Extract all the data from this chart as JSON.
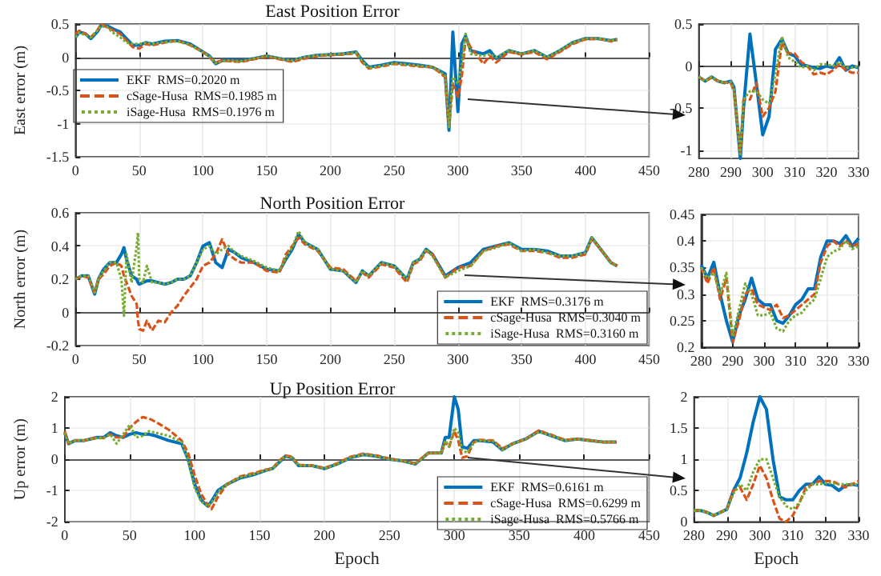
{
  "chart_data": [
    {
      "type": "line",
      "title": "East Position Error",
      "ylabel": "East error (m)",
      "xlim": [
        0,
        450
      ],
      "xticks": [
        0,
        50,
        100,
        150,
        200,
        250,
        300,
        350,
        400,
        450
      ],
      "ylim": [
        -1.5,
        0.5
      ],
      "yticks": [
        -1.5,
        -1,
        -0.5,
        0,
        0.5
      ],
      "grid": true,
      "legend": "left",
      "marker": "none",
      "x": [
        0,
        3,
        8,
        12,
        17,
        20,
        25,
        30,
        35,
        40,
        45,
        50,
        55,
        60,
        70,
        80,
        90,
        100,
        105,
        110,
        115,
        120,
        130,
        140,
        150,
        160,
        170,
        180,
        190,
        200,
        210,
        220,
        225,
        230,
        240,
        250,
        260,
        270,
        280,
        285,
        290,
        293,
        296,
        300,
        303,
        306,
        310,
        320,
        325,
        330,
        340,
        350,
        360,
        370,
        380,
        390,
        400,
        410,
        420,
        425
      ],
      "series": [
        {
          "name": "EKF  RMS=0.2020 m",
          "color": "#0072bd",
          "line_style": "solid",
          "values": [
            0.3,
            0.38,
            0.35,
            0.28,
            0.38,
            0.48,
            0.47,
            0.42,
            0.38,
            0.28,
            0.18,
            0.18,
            0.22,
            0.2,
            0.24,
            0.25,
            0.2,
            0.08,
            0.02,
            -0.1,
            -0.05,
            -0.04,
            -0.05,
            -0.02,
            0.02,
            -0.02,
            -0.05,
            0,
            0.03,
            0.04,
            0.05,
            0.08,
            -0.05,
            -0.15,
            -0.12,
            -0.08,
            -0.1,
            -0.12,
            -0.15,
            -0.2,
            -0.25,
            -1.1,
            0.38,
            -0.82,
            0.2,
            0.32,
            0.1,
            0.05,
            0.1,
            -0.02,
            0.1,
            0.05,
            0.1,
            0,
            0.1,
            0.22,
            0.28,
            0.28,
            0.25,
            0.27
          ]
        },
        {
          "name": "cSage-Husa  RMS=0.1985 m",
          "color": "#d95319",
          "line_style": "dashed",
          "values": [
            0.35,
            0.4,
            0.35,
            0.3,
            0.4,
            0.5,
            0.45,
            0.4,
            0.35,
            0.25,
            0.15,
            0.13,
            0.2,
            0.18,
            0.22,
            0.25,
            0.18,
            0.08,
            0,
            -0.08,
            -0.05,
            -0.06,
            -0.07,
            -0.03,
            0.01,
            -0.03,
            -0.07,
            -0.02,
            0.02,
            0.03,
            0.04,
            0.06,
            -0.08,
            -0.17,
            -0.14,
            -0.1,
            -0.12,
            -0.14,
            -0.15,
            -0.22,
            -0.3,
            -1.05,
            -0.4,
            -0.6,
            -0.3,
            0.28,
            0.15,
            -0.1,
            0.02,
            -0.08,
            0.08,
            0.04,
            0.08,
            -0.03,
            0.08,
            0.2,
            0.27,
            0.28,
            0.24,
            0.26
          ]
        },
        {
          "name": "iSage-Husa  RMS=0.1976 m",
          "color": "#77ac30",
          "line_style": "dotted",
          "values": [
            0.3,
            0.37,
            0.33,
            0.3,
            0.4,
            0.47,
            0.45,
            0.36,
            0.3,
            0.22,
            0.2,
            0.2,
            0.22,
            0.2,
            0.23,
            0.24,
            0.19,
            0.07,
            0.01,
            -0.09,
            -0.06,
            -0.05,
            -0.06,
            -0.02,
            0.02,
            -0.02,
            -0.05,
            0,
            0.03,
            0.04,
            0.05,
            0.07,
            -0.06,
            -0.16,
            -0.13,
            -0.09,
            -0.11,
            -0.13,
            -0.15,
            -0.2,
            -0.28,
            -1.05,
            -0.3,
            -0.4,
            -0.1,
            0.35,
            0.05,
            0.02,
            0.05,
            0,
            0.1,
            0.05,
            0.1,
            0,
            0.1,
            0.22,
            0.28,
            0.28,
            0.25,
            0.27
          ]
        }
      ]
    },
    {
      "type": "line",
      "xlim": [
        280,
        330
      ],
      "xticks": [
        280,
        290,
        300,
        310,
        320,
        330
      ],
      "ylim": [
        -1.1,
        0.5
      ],
      "yticks": [
        -1,
        -0.5,
        0,
        0.5
      ],
      "grid": true,
      "legend": false,
      "marker": "none",
      "x": [
        280,
        282,
        284,
        286,
        288,
        290,
        291,
        293,
        294,
        296,
        298,
        300,
        302,
        304,
        306,
        308,
        310,
        312,
        314,
        316,
        318,
        320,
        322,
        324,
        326,
        328,
        330
      ],
      "series": [
        {
          "color": "#0072bd",
          "line_style": "solid",
          "values": [
            -0.13,
            -0.18,
            -0.13,
            -0.18,
            -0.2,
            -0.18,
            -0.25,
            -1.1,
            -0.5,
            0.38,
            -0.2,
            -0.82,
            -0.6,
            0.2,
            0.32,
            0.15,
            0.12,
            0.02,
            0,
            -0.02,
            -0.03,
            0,
            -0.02,
            0.1,
            -0.05,
            0,
            -0.02
          ]
        },
        {
          "color": "#d95319",
          "line_style": "dashed",
          "values": [
            -0.13,
            -0.18,
            -0.14,
            -0.18,
            -0.2,
            -0.2,
            -0.3,
            -1.05,
            -0.4,
            -0.4,
            -0.2,
            -0.6,
            -0.5,
            -0.3,
            0.28,
            0.15,
            0.15,
            0.05,
            0,
            -0.1,
            -0.08,
            -0.1,
            -0.05,
            0.02,
            -0.05,
            -0.08,
            -0.08
          ]
        },
        {
          "color": "#77ac30",
          "line_style": "dotted",
          "values": [
            -0.13,
            -0.18,
            -0.13,
            -0.18,
            -0.2,
            -0.19,
            -0.28,
            -1.05,
            -0.4,
            -0.3,
            -0.3,
            -0.4,
            -0.45,
            -0.1,
            0.35,
            0.1,
            0.05,
            -0.02,
            0,
            -0.05,
            0.02,
            0.02,
            0,
            0.05,
            -0.02,
            -0.02,
            0
          ]
        }
      ]
    },
    {
      "type": "line",
      "title": "North Position Error",
      "ylabel": "North error (m)",
      "xlim": [
        0,
        450
      ],
      "xticks": [
        0,
        50,
        100,
        150,
        200,
        250,
        300,
        350,
        400,
        450
      ],
      "ylim": [
        -0.2,
        0.6
      ],
      "yticks": [
        -0.2,
        0,
        0.2,
        0.4,
        0.6
      ],
      "grid": true,
      "legend": "bottom right",
      "marker": "none",
      "x": [
        0,
        5,
        10,
        15,
        18,
        22,
        27,
        32,
        36,
        38,
        40,
        44,
        48,
        49,
        50,
        53,
        56,
        60,
        65,
        70,
        75,
        80,
        85,
        90,
        95,
        100,
        105,
        110,
        115,
        120,
        125,
        130,
        140,
        150,
        160,
        165,
        170,
        175,
        180,
        190,
        200,
        210,
        220,
        225,
        230,
        240,
        250,
        260,
        265,
        270,
        275,
        280,
        290,
        300,
        310,
        320,
        330,
        340,
        350,
        360,
        370,
        380,
        390,
        400,
        405,
        410,
        420,
        425
      ],
      "series": [
        {
          "name": "EKF  RMS=0.3176 m",
          "color": "#0072bd",
          "line_style": "solid",
          "values": [
            0.2,
            0.22,
            0.22,
            0.11,
            0.2,
            0.26,
            0.3,
            0.3,
            0.35,
            0.39,
            0.32,
            0.22,
            0.2,
            0.18,
            0.17,
            0.18,
            0.19,
            0.19,
            0.18,
            0.17,
            0.18,
            0.2,
            0.2,
            0.22,
            0.3,
            0.4,
            0.42,
            0.3,
            0.27,
            0.38,
            0.36,
            0.33,
            0.3,
            0.26,
            0.25,
            0.32,
            0.38,
            0.47,
            0.42,
            0.38,
            0.26,
            0.25,
            0.18,
            0.25,
            0.22,
            0.3,
            0.28,
            0.2,
            0.3,
            0.32,
            0.38,
            0.35,
            0.22,
            0.27,
            0.3,
            0.38,
            0.4,
            0.42,
            0.38,
            0.38,
            0.37,
            0.34,
            0.34,
            0.36,
            0.45,
            0.4,
            0.3,
            0.28
          ]
        },
        {
          "name": "cSage-Husa  RMS=0.3040 m",
          "color": "#d95319",
          "line_style": "dashed",
          "values": [
            0.2,
            0.22,
            0.21,
            0.12,
            0.2,
            0.23,
            0.28,
            0.3,
            0.28,
            0.22,
            0.18,
            0.1,
            0.05,
            -0.05,
            -0.1,
            -0.11,
            -0.05,
            -0.11,
            -0.05,
            -0.06,
            0,
            0.04,
            0.1,
            0.15,
            0.2,
            0.28,
            0.3,
            0.35,
            0.44,
            0.35,
            0.32,
            0.3,
            0.3,
            0.25,
            0.24,
            0.35,
            0.4,
            0.45,
            0.41,
            0.37,
            0.27,
            0.26,
            0.19,
            0.24,
            0.21,
            0.29,
            0.27,
            0.18,
            0.29,
            0.31,
            0.37,
            0.35,
            0.21,
            0.27,
            0.28,
            0.37,
            0.4,
            0.41,
            0.37,
            0.37,
            0.36,
            0.33,
            0.33,
            0.35,
            0.44,
            0.4,
            0.3,
            0.28
          ]
        },
        {
          "name": "iSage-Husa  RMS=0.3160 m",
          "color": "#77ac30",
          "line_style": "dotted",
          "values": [
            0.2,
            0.22,
            0.22,
            0.12,
            0.2,
            0.25,
            0.3,
            0.3,
            0.2,
            -0.02,
            0.35,
            0.18,
            0.4,
            0.48,
            0.2,
            0.18,
            0.28,
            0.18,
            0.18,
            0.17,
            0.18,
            0.2,
            0.2,
            0.22,
            0.3,
            0.38,
            0.4,
            0.35,
            0.38,
            0.4,
            0.36,
            0.34,
            0.31,
            0.27,
            0.25,
            0.33,
            0.39,
            0.49,
            0.42,
            0.38,
            0.26,
            0.25,
            0.18,
            0.25,
            0.22,
            0.3,
            0.28,
            0.2,
            0.3,
            0.32,
            0.38,
            0.34,
            0.21,
            0.25,
            0.28,
            0.37,
            0.39,
            0.42,
            0.37,
            0.38,
            0.36,
            0.34,
            0.34,
            0.36,
            0.45,
            0.4,
            0.3,
            0.28
          ]
        }
      ]
    },
    {
      "type": "line",
      "xlim": [
        280,
        330
      ],
      "xticks": [
        280,
        290,
        300,
        310,
        320,
        330
      ],
      "ylim": [
        0.2,
        0.45
      ],
      "yticks": [
        0.2,
        0.25,
        0.3,
        0.35,
        0.4,
        0.45
      ],
      "grid": true,
      "legend": false,
      "marker": "none",
      "x": [
        280,
        282,
        284,
        286,
        288,
        290,
        292,
        294,
        296,
        298,
        300,
        302,
        304,
        306,
        308,
        310,
        312,
        314,
        316,
        318,
        320,
        322,
        324,
        326,
        328,
        330
      ],
      "series": [
        {
          "color": "#0072bd",
          "line_style": "solid",
          "values": [
            0.355,
            0.33,
            0.36,
            0.3,
            0.25,
            0.21,
            0.26,
            0.29,
            0.33,
            0.29,
            0.28,
            0.28,
            0.25,
            0.245,
            0.26,
            0.28,
            0.29,
            0.31,
            0.31,
            0.37,
            0.4,
            0.4,
            0.395,
            0.41,
            0.39,
            0.405
          ]
        },
        {
          "color": "#d95319",
          "line_style": "dashed",
          "values": [
            0.35,
            0.32,
            0.35,
            0.29,
            0.33,
            0.21,
            0.25,
            0.3,
            0.31,
            0.28,
            0.275,
            0.27,
            0.28,
            0.255,
            0.26,
            0.27,
            0.28,
            0.29,
            0.3,
            0.36,
            0.39,
            0.4,
            0.39,
            0.4,
            0.39,
            0.395
          ]
        },
        {
          "color": "#77ac30",
          "line_style": "dotted",
          "values": [
            0.35,
            0.33,
            0.34,
            0.3,
            0.34,
            0.22,
            0.27,
            0.32,
            0.3,
            0.26,
            0.26,
            0.265,
            0.235,
            0.23,
            0.25,
            0.26,
            0.265,
            0.28,
            0.29,
            0.33,
            0.37,
            0.38,
            0.385,
            0.4,
            0.385,
            0.39
          ]
        }
      ]
    },
    {
      "type": "line",
      "title": "Up Position Error",
      "xlabel": "Epoch",
      "ylabel": "Up error (m)",
      "xlim": [
        0,
        450
      ],
      "xticks": [
        0,
        50,
        100,
        150,
        200,
        250,
        300,
        350,
        400,
        450
      ],
      "ylim": [
        -2,
        2
      ],
      "yticks": [
        -2,
        -1,
        0,
        1,
        2
      ],
      "grid": true,
      "legend": "bottom right",
      "marker": "none",
      "x": [
        0,
        3,
        8,
        15,
        20,
        25,
        30,
        35,
        40,
        45,
        50,
        55,
        60,
        65,
        70,
        80,
        90,
        95,
        100,
        105,
        110,
        113,
        118,
        125,
        135,
        145,
        155,
        160,
        165,
        170,
        175,
        180,
        190,
        200,
        210,
        220,
        230,
        240,
        250,
        260,
        270,
        280,
        290,
        293,
        296,
        300,
        303,
        306,
        310,
        315,
        320,
        330,
        337,
        345,
        355,
        365,
        375,
        385,
        395,
        405,
        415,
        425
      ],
      "series": [
        {
          "name": "EKF  RMS=0.6161 m",
          "color": "#0072bd",
          "line_style": "solid",
          "values": [
            0.85,
            0.5,
            0.6,
            0.6,
            0.65,
            0.7,
            0.7,
            0.85,
            0.75,
            0.7,
            0.8,
            0.85,
            0.8,
            0.8,
            0.75,
            0.6,
            0.5,
            0,
            -0.8,
            -1.3,
            -1.5,
            -1.35,
            -1,
            -0.8,
            -0.6,
            -0.5,
            -0.35,
            -0.3,
            -0.1,
            0.1,
            0.05,
            -0.2,
            -0.2,
            -0.3,
            -0.15,
            0.05,
            0.15,
            0.1,
            0,
            -0.05,
            -0.15,
            0.2,
            0.2,
            0.7,
            0.7,
            2,
            1.6,
            0.4,
            0.35,
            0.6,
            0.6,
            0.55,
            0.3,
            0.5,
            0.65,
            0.9,
            0.75,
            0.6,
            0.65,
            0.6,
            0.55,
            0.55
          ]
        },
        {
          "name": "cSage-Husa  RMS=0.6299 m",
          "color": "#d95319",
          "line_style": "dashed",
          "values": [
            0.9,
            0.5,
            0.6,
            0.6,
            0.65,
            0.7,
            0.68,
            0.8,
            0.7,
            0.7,
            1,
            1.2,
            1.35,
            1.3,
            1.2,
            0.95,
            0.6,
            0.2,
            -0.5,
            -1.1,
            -1.45,
            -1.6,
            -1.2,
            -0.8,
            -0.55,
            -0.45,
            -0.33,
            -0.3,
            -0.05,
            0.12,
            0.08,
            -0.18,
            -0.2,
            -0.28,
            -0.13,
            0.08,
            0.18,
            0.12,
            0.02,
            -0.05,
            -0.13,
            0.2,
            0.2,
            0.55,
            0.4,
            0.9,
            0.6,
            0.05,
            0.1,
            0.55,
            0.62,
            0.6,
            0.35,
            0.5,
            0.65,
            0.92,
            0.78,
            0.62,
            0.65,
            0.6,
            0.55,
            0.55
          ]
        },
        {
          "name": "iSage-Husa  RMS=0.5766 m",
          "color": "#77ac30",
          "line_style": "dotted",
          "values": [
            0.85,
            0.5,
            0.6,
            0.6,
            0.65,
            0.68,
            0.68,
            0.8,
            0.5,
            0.8,
            1.1,
            0.7,
            0.75,
            0.9,
            0.85,
            0.75,
            0.55,
            0,
            -0.9,
            -1.35,
            -1.5,
            -1.4,
            -1.05,
            -0.8,
            -0.58,
            -0.48,
            -0.35,
            -0.3,
            -0.08,
            0.1,
            0.05,
            -0.2,
            -0.2,
            -0.3,
            -0.15,
            0.05,
            0.15,
            0.1,
            0,
            -0.05,
            -0.15,
            0.2,
            0.2,
            0.6,
            0.4,
            1,
            0.85,
            0.3,
            0.2,
            0.55,
            0.6,
            0.58,
            0.3,
            0.5,
            0.65,
            0.88,
            0.75,
            0.6,
            0.65,
            0.6,
            0.55,
            0.55
          ]
        }
      ]
    },
    {
      "type": "line",
      "xlabel": "Epoch",
      "xlim": [
        280,
        330
      ],
      "xticks": [
        280,
        290,
        300,
        310,
        320,
        330
      ],
      "ylim": [
        0,
        2
      ],
      "yticks": [
        0,
        0.5,
        1,
        1.5,
        2
      ],
      "grid": true,
      "legend": false,
      "marker": "none",
      "x": [
        280,
        282,
        284,
        286,
        288,
        290,
        292,
        294,
        296,
        298,
        300,
        302,
        304,
        306,
        308,
        310,
        312,
        314,
        316,
        318,
        320,
        322,
        324,
        326,
        328,
        330
      ],
      "series": [
        {
          "color": "#0072bd",
          "line_style": "solid",
          "values": [
            0.18,
            0.18,
            0.15,
            0.1,
            0.15,
            0.2,
            0.5,
            0.7,
            1.1,
            1.6,
            2,
            1.8,
            1,
            0.4,
            0.35,
            0.35,
            0.5,
            0.6,
            0.6,
            0.72,
            0.6,
            0.58,
            0.5,
            0.58,
            0.6,
            0.58
          ]
        },
        {
          "color": "#d95319",
          "line_style": "dashed",
          "values": [
            0.18,
            0.18,
            0.15,
            0.1,
            0.15,
            0.2,
            0.5,
            0.55,
            0.35,
            0.6,
            0.9,
            0.7,
            0.35,
            0.05,
            0,
            0.1,
            0.3,
            0.55,
            0.6,
            0.65,
            0.65,
            0.65,
            0.6,
            0.55,
            0.6,
            0.65
          ]
        },
        {
          "color": "#77ac30",
          "line_style": "dotted",
          "values": [
            0.18,
            0.18,
            0.15,
            0.1,
            0.15,
            0.2,
            0.45,
            0.6,
            0.5,
            0.8,
            1,
            1,
            0.7,
            0.4,
            0.25,
            0.2,
            0.3,
            0.5,
            0.6,
            0.6,
            0.62,
            0.62,
            0.6,
            0.6,
            0.6,
            0.6
          ]
        }
      ]
    }
  ]
}
